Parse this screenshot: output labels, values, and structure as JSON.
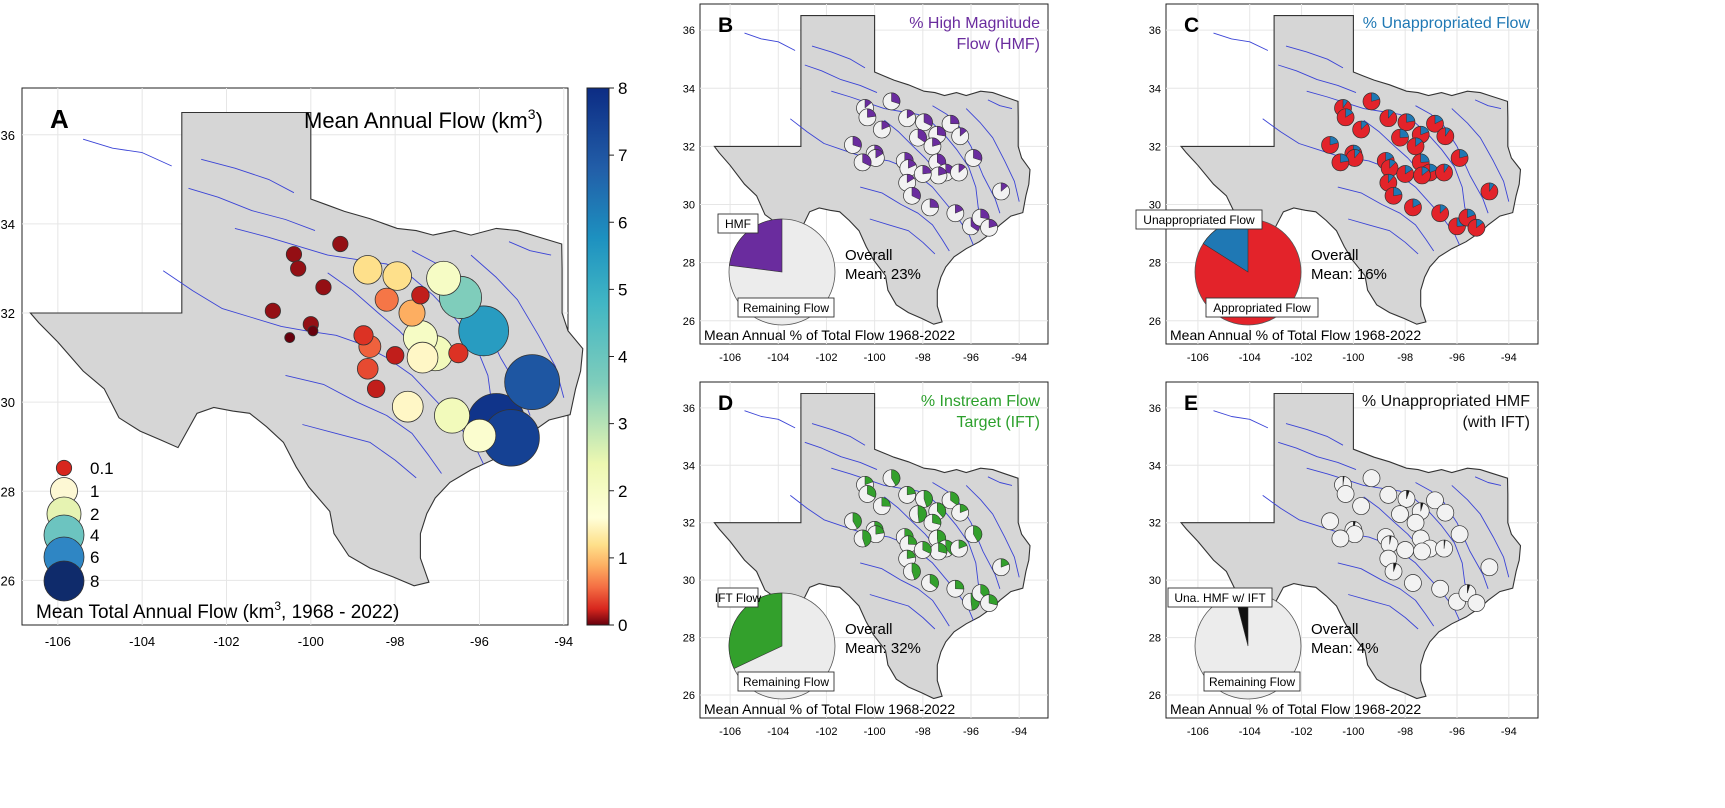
{
  "panel_a": {
    "letter": "A",
    "title_prefix": "Mean Annual Flow (km",
    "title_sup": "3",
    "title_suffix": ")",
    "x_ticks": [
      "-106",
      "-104",
      "-102",
      "-100",
      "-98",
      "-96",
      "-94"
    ],
    "y_ticks": [
      "36",
      "34",
      "32",
      "30",
      "28",
      "26"
    ],
    "colorbar_ticks": [
      "8",
      "7",
      "6",
      "5",
      "4",
      "3",
      "2",
      "1",
      "0"
    ],
    "legend_items": [
      {
        "label": "0.1",
        "color": "#d7261e"
      },
      {
        "label": "1",
        "color": "#fdf8d4"
      },
      {
        "label": "2",
        "color": "#e6f3b2"
      },
      {
        "label": "4",
        "color": "#6cc4c0"
      },
      {
        "label": "6",
        "color": "#2f86c4"
      },
      {
        "label": "8",
        "color": "#0f2b6b"
      }
    ],
    "legend_title_prefix": "Mean Total Annual Flow (km",
    "legend_title_sup": "3",
    "legend_title_suffix": ", 1968 - 2022)"
  },
  "panels_small": [
    {
      "letter": "B",
      "title_line1": "% High Magnitude",
      "title_line2": "Flow (HMF)",
      "title_color": "#6a2c9e",
      "slice_color": "#6a2c9e",
      "slice_percent": 23,
      "slice_label": "HMF",
      "remaining_label": "Remaining Flow",
      "overall_line1": "Overall",
      "overall_line2": "Mean: 23%",
      "footer": "Mean Annual % of Total Flow 1968-2022"
    },
    {
      "letter": "C",
      "title_line1": "% Unappropriated Flow",
      "title_line2": "",
      "title_color": "#1f78b4",
      "slice_color": "#1f78b4",
      "slice_percent": 16,
      "slice_label": "Unappropriated Flow",
      "remaining_label": "Appropriated Flow",
      "overall_line1": "Overall",
      "overall_line2": "Mean: 16%",
      "footer": "Mean Annual % of Total Flow 1968-2022"
    },
    {
      "letter": "D",
      "title_line1": "% Instream Flow",
      "title_line2": "Target (IFT)",
      "title_color": "#2ca02c",
      "slice_color": "#33a02c",
      "slice_percent": 32,
      "slice_label": "IFT Flow",
      "remaining_label": "Remaining Flow",
      "overall_line1": "Overall",
      "overall_line2": "Mean: 32%",
      "footer": "Mean Annual % of Total Flow 1968-2022"
    },
    {
      "letter": "E",
      "title_line1": "% Unappropriated HMF",
      "title_line2": "(with IFT)",
      "title_color": "#111111",
      "slice_color": "#111111",
      "slice_percent": 4,
      "slice_label": "Una. HMF w/ IFT",
      "remaining_label": "Remaining Flow",
      "overall_line1": "Overall",
      "overall_line2": "Mean: 4%",
      "footer": "Mean Annual % of Total Flow 1968-2022"
    }
  ],
  "small_x_ticks": [
    "-106",
    "-104",
    "-102",
    "-100",
    "-98",
    "-96",
    "-94"
  ],
  "small_y_ticks": [
    "36",
    "34",
    "32",
    "30",
    "28",
    "26"
  ],
  "colors": {
    "state_fill": "#d6d6d6",
    "state_outline": "#333333",
    "river": "#3b44d6",
    "grid": "#e6e6e6",
    "appropriated": "#e3232a"
  },
  "gauges": [
    {
      "lon": -100.4,
      "lat": 33.32,
      "flow": 0.1
    },
    {
      "lon": -99.3,
      "lat": 33.55,
      "flow": 0.1
    },
    {
      "lon": -100.3,
      "lat": 33.0,
      "flow": 0.1
    },
    {
      "lon": -98.65,
      "lat": 32.97,
      "flow": 1.2
    },
    {
      "lon": -97.95,
      "lat": 32.83,
      "flow": 1.2
    },
    {
      "lon": -96.85,
      "lat": 32.78,
      "flow": 2.0
    },
    {
      "lon": -99.7,
      "lat": 32.58,
      "flow": 0.1
    },
    {
      "lon": -98.2,
      "lat": 32.3,
      "flow": 0.6
    },
    {
      "lon": -97.4,
      "lat": 32.4,
      "flow": 0.2
    },
    {
      "lon": -97.6,
      "lat": 32.0,
      "flow": 0.9
    },
    {
      "lon": -96.45,
      "lat": 32.35,
      "flow": 3.6
    },
    {
      "lon": -100.9,
      "lat": 32.05,
      "flow": 0.1
    },
    {
      "lon": -100.0,
      "lat": 31.75,
      "flow": 0.1
    },
    {
      "lon": -99.95,
      "lat": 31.6,
      "flow": 0.0
    },
    {
      "lon": -100.5,
      "lat": 31.45,
      "flow": 0.0
    },
    {
      "lon": -98.75,
      "lat": 31.5,
      "flow": 0.3
    },
    {
      "lon": -98.6,
      "lat": 31.25,
      "flow": 0.5
    },
    {
      "lon": -97.4,
      "lat": 31.45,
      "flow": 2.0
    },
    {
      "lon": -97.05,
      "lat": 31.1,
      "flow": 2.2
    },
    {
      "lon": -97.35,
      "lat": 31.0,
      "flow": 1.5
    },
    {
      "lon": -96.5,
      "lat": 31.1,
      "flow": 0.3
    },
    {
      "lon": -95.9,
      "lat": 31.6,
      "flow": 5.5
    },
    {
      "lon": -98.0,
      "lat": 31.05,
      "flow": 0.2
    },
    {
      "lon": -98.65,
      "lat": 30.75,
      "flow": 0.4
    },
    {
      "lon": -98.45,
      "lat": 30.3,
      "flow": 0.2
    },
    {
      "lon": -97.7,
      "lat": 29.9,
      "flow": 1.5
    },
    {
      "lon": -96.65,
      "lat": 29.7,
      "flow": 2.2
    },
    {
      "lon": -96.0,
      "lat": 29.25,
      "flow": 1.8
    },
    {
      "lon": -95.6,
      "lat": 29.55,
      "flow": 7.8
    },
    {
      "lon": -95.25,
      "lat": 29.2,
      "flow": 7.5
    },
    {
      "lon": -94.75,
      "lat": 30.45,
      "flow": 7.0
    }
  ]
}
